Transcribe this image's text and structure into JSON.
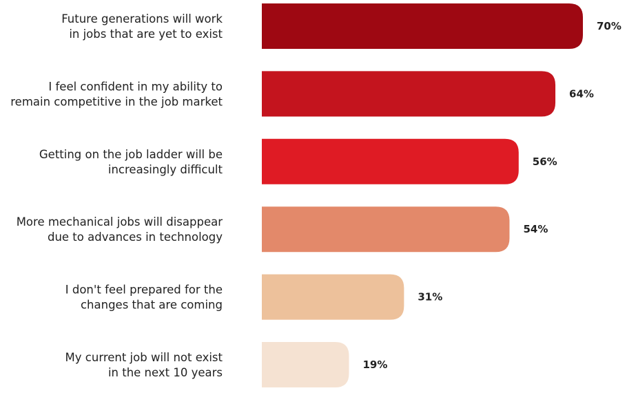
{
  "chart_data": {
    "type": "bar",
    "orientation": "horizontal",
    "title": "",
    "xlabel": "",
    "ylabel": "",
    "categories": [
      [
        "Future generations will work",
        "in jobs that are yet to exist"
      ],
      [
        "I feel confident in my ability to",
        "remain competitive in the job market"
      ],
      [
        "Getting on the job ladder will be",
        "increasingly difficult"
      ],
      [
        "More mechanical jobs will disappear",
        "due to advances in technology"
      ],
      [
        "I don't feel prepared for the",
        "changes that are coming"
      ],
      [
        "My current job will not exist",
        "in the next 10 years"
      ]
    ],
    "values": [
      70,
      64,
      56,
      54,
      31,
      19
    ],
    "value_labels": [
      "70%",
      "64%",
      "56%",
      "54%",
      "31%",
      "19%"
    ],
    "colors": [
      "#9E0812",
      "#C4141E",
      "#DF1B24",
      "#E3896A",
      "#EDC19B",
      "#F5E2D2"
    ],
    "xlim": [
      0,
      70
    ],
    "grid": false,
    "legend": "none"
  }
}
